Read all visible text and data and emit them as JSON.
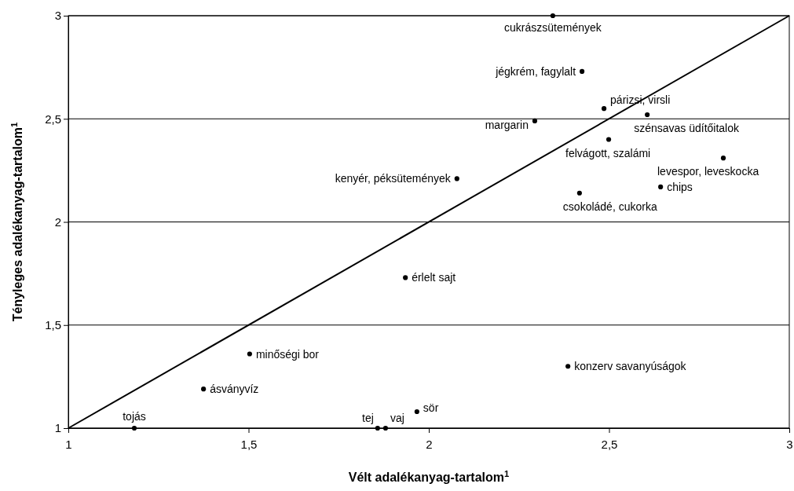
{
  "chart_data": {
    "type": "scatter",
    "xlabel": "Vélt adalékanyag-tartalom$^{1}$",
    "ylabel": "Tényleges adalékanyag-tartalom$^{1}$",
    "xlim": [
      1,
      3
    ],
    "ylim": [
      1,
      3
    ],
    "xticks": [
      1,
      {
        "value": 1.5,
        "label": "1,5"
      },
      2,
      {
        "value": 2.5,
        "label": "2,5"
      },
      3
    ],
    "yticks": [
      1,
      {
        "value": 1.5,
        "label": "1,5"
      },
      2,
      {
        "value": 2.5,
        "label": "2,5"
      },
      3
    ],
    "grid": "y",
    "series": [
      {
        "color": "#000000",
        "marker": "circle",
        "x": [
          2.344,
          2.425,
          2.486,
          2.606,
          2.294,
          2.499,
          2.817,
          2.078,
          2.643,
          2.418,
          1.935,
          1.503,
          1.375,
          2.386,
          1.183,
          1.858,
          1.88,
          1.967
        ],
        "values": [
          3.0,
          2.73,
          2.55,
          2.52,
          2.49,
          2.4,
          2.31,
          2.21,
          2.17,
          2.14,
          1.73,
          1.36,
          1.19,
          1.3,
          1.0,
          1.0,
          1.0,
          1.08
        ]
      },
      {
        "type": "line",
        "color": "#000000",
        "x": [
          1,
          3
        ],
        "values": [
          1,
          3
        ],
        "marker": "none"
      }
    ],
    "annotations": [
      {
        "text": "cukrászsütemények",
        "x": 2.344,
        "y": 3.0
      },
      {
        "text": "jégkrém, fagylalt",
        "x": 2.425,
        "y": 2.73
      },
      {
        "text": "párizsi, virsli",
        "x": 2.486,
        "y": 2.55
      },
      {
        "text": "szénsavas üdítőitalok",
        "x": 2.606,
        "y": 2.52
      },
      {
        "text": "margarin",
        "x": 2.294,
        "y": 2.49
      },
      {
        "text": "felvágott, szalámi",
        "x": 2.499,
        "y": 2.4
      },
      {
        "text": "levespor, leveskocka",
        "x": 2.817,
        "y": 2.31
      },
      {
        "text": "kenyér, péksütemények",
        "x": 2.078,
        "y": 2.21
      },
      {
        "text": "chips",
        "x": 2.643,
        "y": 2.17
      },
      {
        "text": "csokoládé, cukorka",
        "x": 2.418,
        "y": 2.14
      },
      {
        "text": "érlelt sajt",
        "x": 1.935,
        "y": 1.73
      },
      {
        "text": "minőségi bor",
        "x": 1.503,
        "y": 1.36
      },
      {
        "text": "ásványvíz",
        "x": 1.375,
        "y": 1.19
      },
      {
        "text": "konzerv savanyúságok",
        "x": 2.386,
        "y": 1.3
      },
      {
        "text": "tojás",
        "x": 1.183,
        "y": 1.0
      },
      {
        "text": "tej",
        "x": 1.858,
        "y": 1.0
      },
      {
        "text": "vaj",
        "x": 1.88,
        "y": 1.0
      },
      {
        "text": "sör",
        "x": 1.967,
        "y": 1.08
      }
    ]
  }
}
